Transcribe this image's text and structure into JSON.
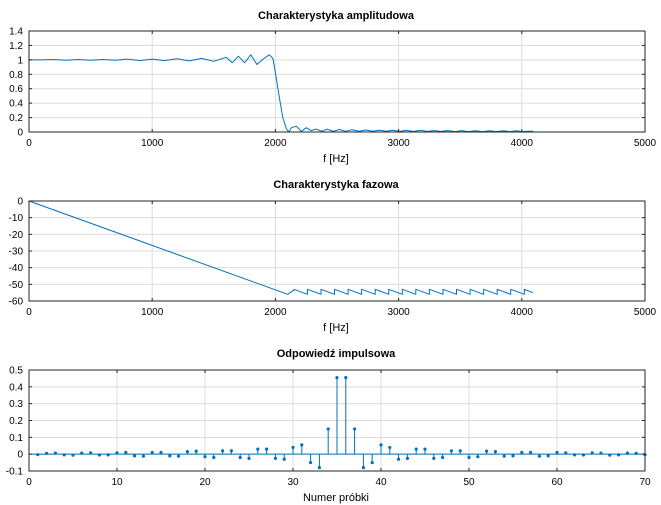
{
  "chart_data": [
    {
      "type": "line",
      "title": "Charakterystyka amplitudowa",
      "xlabel": "f [Hz]",
      "ylabel": "",
      "xlim": [
        0,
        5000
      ],
      "ylim": [
        0,
        1.4
      ],
      "xticks": [
        0,
        1000,
        2000,
        3000,
        4000,
        5000
      ],
      "yticks": [
        0,
        0.2,
        0.4,
        0.6,
        0.8,
        1,
        1.2,
        1.4
      ],
      "xtick_labels": [
        "0",
        "1000",
        "2000",
        "3000",
        "4000",
        "5000"
      ],
      "ytick_labels": [
        "0",
        "0.2",
        "0.4",
        "0.6",
        "0.8",
        "1",
        "1.2",
        "1.4"
      ],
      "grid": true,
      "color": "#0072BD",
      "series": [
        {
          "x": [
            0,
            100,
            200,
            300,
            400,
            500,
            600,
            700,
            800,
            900,
            1000,
            1100,
            1200,
            1300,
            1400,
            1500,
            1600,
            1650,
            1700,
            1750,
            1800,
            1850,
            1900,
            1950,
            1980,
            2000,
            2030,
            2060,
            2090,
            2110,
            2130,
            2170,
            2210,
            2250,
            2290,
            2330,
            2380,
            2420,
            2470,
            2520,
            2570,
            2620,
            2680,
            2730,
            2790,
            2840,
            2900,
            2950,
            3010,
            3060,
            3120,
            3180,
            3230,
            3290,
            3340,
            3400,
            3460,
            3510,
            3570,
            3620,
            3680,
            3740,
            3790,
            3850,
            3900,
            3960,
            4000,
            4050,
            4090
          ],
          "y": [
            1,
            1,
            1.005,
            0.995,
            1.005,
            0.995,
            1.005,
            0.995,
            1.01,
            0.99,
            1.01,
            0.99,
            1.015,
            0.985,
            1.02,
            0.98,
            1.035,
            0.96,
            1.05,
            0.96,
            1.07,
            0.935,
            1.01,
            1.07,
            1.02,
            0.82,
            0.5,
            0.2,
            0.04,
            0,
            0.06,
            0.08,
            0.01,
            0.06,
            0.02,
            0.04,
            0.01,
            0.04,
            0.01,
            0.035,
            0.01,
            0.03,
            0.01,
            0.028,
            0.01,
            0.025,
            0.01,
            0.025,
            0.008,
            0.022,
            0.008,
            0.022,
            0.008,
            0.02,
            0.008,
            0.02,
            0.006,
            0.02,
            0.006,
            0.018,
            0.006,
            0.018,
            0.006,
            0.016,
            0.005,
            0.016,
            0.005,
            0.01,
            0.01
          ]
        }
      ]
    },
    {
      "type": "line",
      "title": "Charakterystyka fazowa",
      "xlabel": "f [Hz]",
      "ylabel": "",
      "xlim": [
        0,
        5000
      ],
      "ylim": [
        -60,
        0
      ],
      "xticks": [
        0,
        1000,
        2000,
        3000,
        4000,
        5000
      ],
      "yticks": [
        -60,
        -50,
        -40,
        -30,
        -20,
        -10,
        0
      ],
      "xtick_labels": [
        "0",
        "1000",
        "2000",
        "3000",
        "4000",
        "5000"
      ],
      "ytick_labels": [
        "-60",
        "-50",
        "-40",
        "-30",
        "-20",
        "-10",
        "0"
      ],
      "grid": true,
      "color": "#0072BD",
      "series": [
        {
          "x": [
            0,
            2100,
            2100,
            2150,
            2150,
            2260,
            2260,
            2370,
            2370,
            2480,
            2480,
            2590,
            2590,
            2700,
            2700,
            2810,
            2810,
            2920,
            2920,
            3030,
            3030,
            3140,
            3140,
            3250,
            3250,
            3360,
            3360,
            3470,
            3470,
            3580,
            3580,
            3690,
            3690,
            3800,
            3800,
            3910,
            3910,
            4020,
            4020,
            4090
          ],
          "y": [
            0,
            -56,
            -56,
            -53.5,
            -53,
            -56,
            -53,
            -56,
            -53,
            -56,
            -53,
            -56,
            -53,
            -56,
            -53,
            -56,
            -53,
            -56,
            -53,
            -56,
            -53,
            -56,
            -53,
            -56,
            -53,
            -56,
            -53,
            -56,
            -53,
            -56,
            -53,
            -56,
            -53,
            -56,
            -53,
            -56,
            -53,
            -56,
            -53,
            -55
          ]
        }
      ]
    },
    {
      "type": "scatter",
      "subtype": "stem",
      "title": "Odpowiedź impulsowa",
      "xlabel": "Numer próbki",
      "ylabel": "",
      "xlim": [
        0,
        70
      ],
      "ylim": [
        -0.1,
        0.5
      ],
      "xticks": [
        0,
        10,
        20,
        30,
        40,
        50,
        60,
        70
      ],
      "yticks": [
        -0.1,
        0,
        0.1,
        0.2,
        0.3,
        0.4,
        0.5
      ],
      "xtick_labels": [
        "0",
        "10",
        "20",
        "30",
        "40",
        "50",
        "60",
        "70"
      ],
      "ytick_labels": [
        "-0.1",
        "0",
        "0.1",
        "0.2",
        "0.3",
        "0.4",
        "0.5"
      ],
      "grid": true,
      "color": "#0072BD",
      "series": [
        {
          "x": [
            1,
            2,
            3,
            4,
            5,
            6,
            7,
            8,
            9,
            10,
            11,
            12,
            13,
            14,
            15,
            16,
            17,
            18,
            19,
            20,
            21,
            22,
            23,
            24,
            25,
            26,
            27,
            28,
            29,
            30,
            31,
            32,
            33,
            34,
            35,
            36,
            37,
            38,
            39,
            40,
            41,
            42,
            43,
            44,
            45,
            46,
            47,
            48,
            49,
            50,
            51,
            52,
            53,
            54,
            55,
            56,
            57,
            58,
            59,
            60,
            61,
            62,
            63,
            64,
            65,
            66,
            67,
            68,
            69,
            70
          ],
          "y": [
            -0.003,
            0.005,
            0.006,
            -0.004,
            -0.006,
            0.006,
            0.008,
            -0.005,
            -0.004,
            0.008,
            0.01,
            -0.01,
            -0.012,
            0.01,
            0.01,
            -0.01,
            -0.012,
            0.015,
            0.018,
            -0.015,
            -0.02,
            0.02,
            0.02,
            -0.02,
            -0.025,
            0.03,
            0.03,
            -0.025,
            -0.03,
            0.04,
            0.055,
            -0.05,
            -0.08,
            0.15,
            0.455,
            0.455,
            0.15,
            -0.08,
            -0.05,
            0.055,
            0.04,
            -0.03,
            -0.025,
            0.03,
            0.03,
            -0.025,
            -0.02,
            0.02,
            0.02,
            -0.02,
            -0.015,
            0.018,
            0.015,
            -0.012,
            -0.01,
            0.01,
            0.01,
            -0.012,
            -0.01,
            0.01,
            0.008,
            -0.004,
            -0.005,
            0.008,
            0.006,
            -0.006,
            -0.004,
            0.006,
            0.005,
            -0.003
          ]
        }
      ]
    }
  ]
}
